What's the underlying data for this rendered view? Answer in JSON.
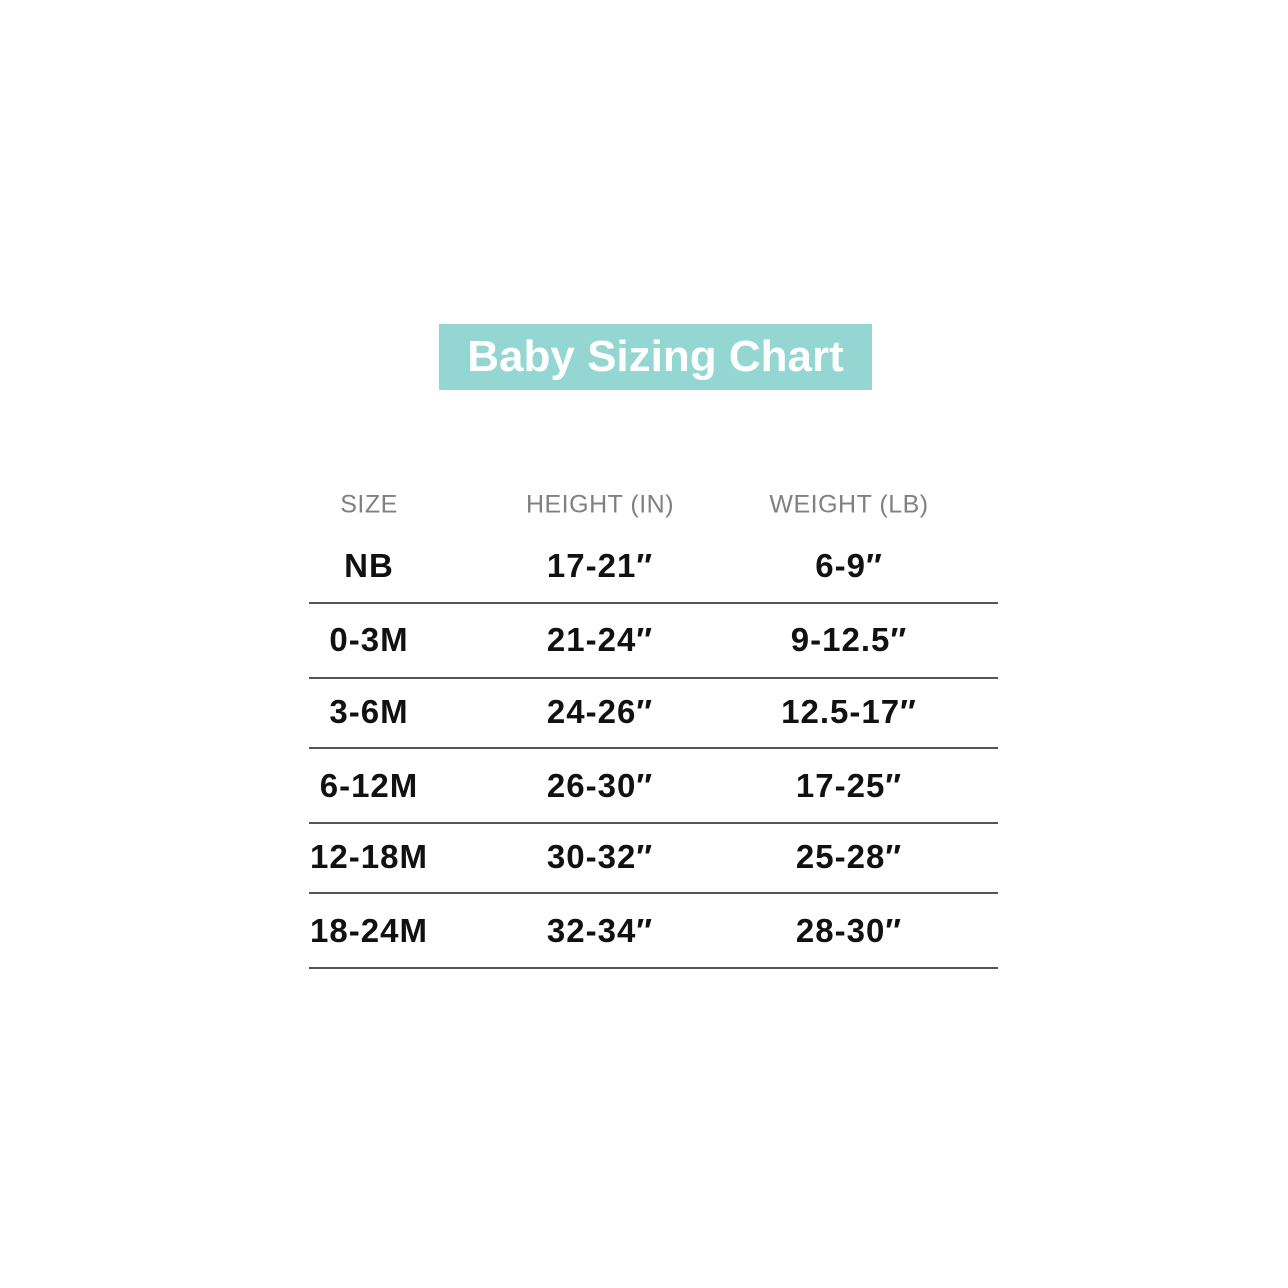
{
  "title": "Baby Sizing Chart",
  "colors": {
    "title_background": "#93d6d2",
    "title_text": "#ffffff",
    "header_text": "#808080",
    "value_text": "#111111"
  },
  "table": {
    "headers": [
      "SIZE",
      "HEIGHT (IN)",
      "WEIGHT (LB)"
    ],
    "rows": [
      [
        "NB",
        "17-21″",
        "6-9″"
      ],
      [
        "0-3M",
        "21-24″",
        "9-12.5″"
      ],
      [
        "3-6M",
        "24-26″",
        "12.5-17″"
      ],
      [
        "6-12M",
        "26-30″",
        "17-25″"
      ],
      [
        "12-18M",
        "30-32″",
        "25-28″"
      ],
      [
        "18-24M",
        "32-34″",
        "28-30″"
      ]
    ]
  }
}
